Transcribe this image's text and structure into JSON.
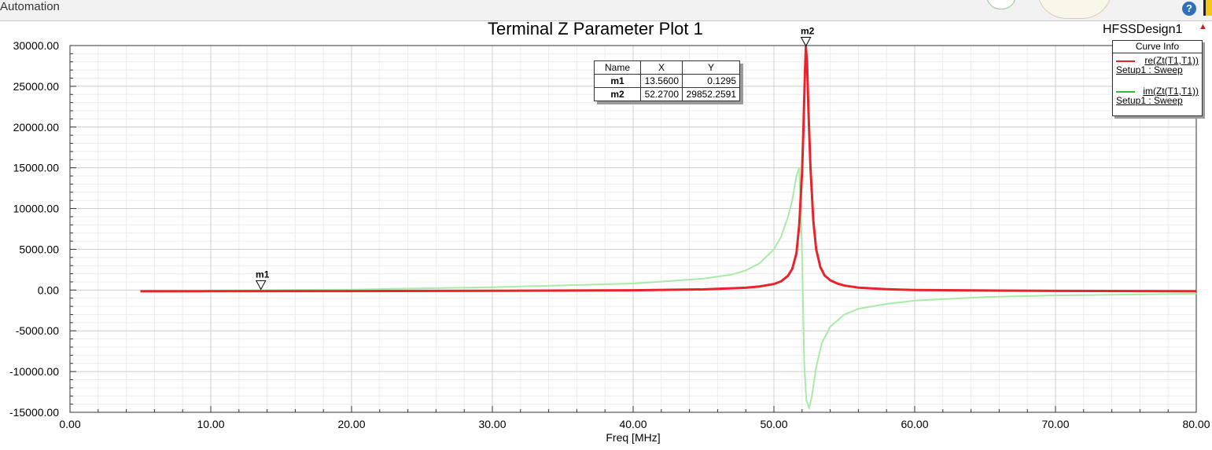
{
  "app": {
    "title": "Automation",
    "help_label": "?"
  },
  "header": {
    "design_name": "HFSSDesign1"
  },
  "chart_data": {
    "type": "line",
    "title": "Terminal Z Parameter Plot 1",
    "xlabel": "Freq [MHz]",
    "ylabel": "",
    "xlim": [
      0,
      80
    ],
    "ylim": [
      -15000,
      30000
    ],
    "x_ticks": [
      "0.00",
      "10.00",
      "20.00",
      "30.00",
      "40.00",
      "50.00",
      "60.00",
      "70.00",
      "80.00"
    ],
    "y_ticks": [
      "30000.00",
      "25000.00",
      "20000.00",
      "15000.00",
      "10000.00",
      "5000.00",
      "0.00",
      "-5000.00",
      "-10000.00",
      "-15000.00"
    ],
    "grid": true,
    "series": [
      {
        "name": "re(Zt(T1,T1))",
        "setup": "Setup1 : Sweep",
        "color": "#e8232b",
        "x": [
          5,
          10,
          20,
          30,
          40,
          45,
          48,
          49,
          50,
          50.5,
          51,
          51.3,
          51.6,
          51.8,
          52.0,
          52.1,
          52.2,
          52.27,
          52.35,
          52.45,
          52.6,
          52.8,
          53.0,
          53.3,
          53.6,
          54,
          54.5,
          55,
          56,
          58,
          60,
          70,
          80
        ],
        "y": [
          -150,
          -140,
          -120,
          -90,
          -30,
          80,
          280,
          450,
          750,
          1050,
          1750,
          2600,
          4500,
          8000,
          14500,
          20000,
          26500,
          29852,
          28000,
          22000,
          15000,
          8500,
          5000,
          2800,
          1800,
          1200,
          800,
          550,
          300,
          100,
          0,
          -100,
          -150
        ]
      },
      {
        "name": "im(Zt(T1,T1))",
        "setup": "Setup1 : Sweep",
        "color": "#a8eba8",
        "x": [
          5,
          10,
          20,
          30,
          40,
          45,
          47,
          48,
          49,
          50,
          50.5,
          51,
          51.3,
          51.6,
          51.8,
          51.95,
          52.05,
          52.15,
          52.3,
          52.5,
          52.7,
          53.0,
          53.4,
          54,
          55,
          56,
          58,
          60,
          65,
          70,
          80
        ],
        "y": [
          -100,
          -60,
          60,
          350,
          800,
          1400,
          1900,
          2400,
          3300,
          5000,
          6500,
          9000,
          11000,
          14000,
          15000,
          8000,
          0,
          -9000,
          -13500,
          -14500,
          -13000,
          -9500,
          -6500,
          -4500,
          -3000,
          -2300,
          -1700,
          -1300,
          -850,
          -650,
          -450
        ]
      }
    ],
    "markers": [
      {
        "name": "m1",
        "x": 13.56,
        "y": 0.1295,
        "x_label": "13.5600",
        "y_label": "0.1295"
      },
      {
        "name": "m2",
        "x": 52.27,
        "y": 29852.2591,
        "x_label": "52.2700",
        "y_label": "29852.2591"
      }
    ],
    "marker_table": {
      "headers": [
        "Name",
        "X",
        "Y"
      ]
    },
    "legend": {
      "title": "Curve Info",
      "placement": "top-right"
    }
  }
}
